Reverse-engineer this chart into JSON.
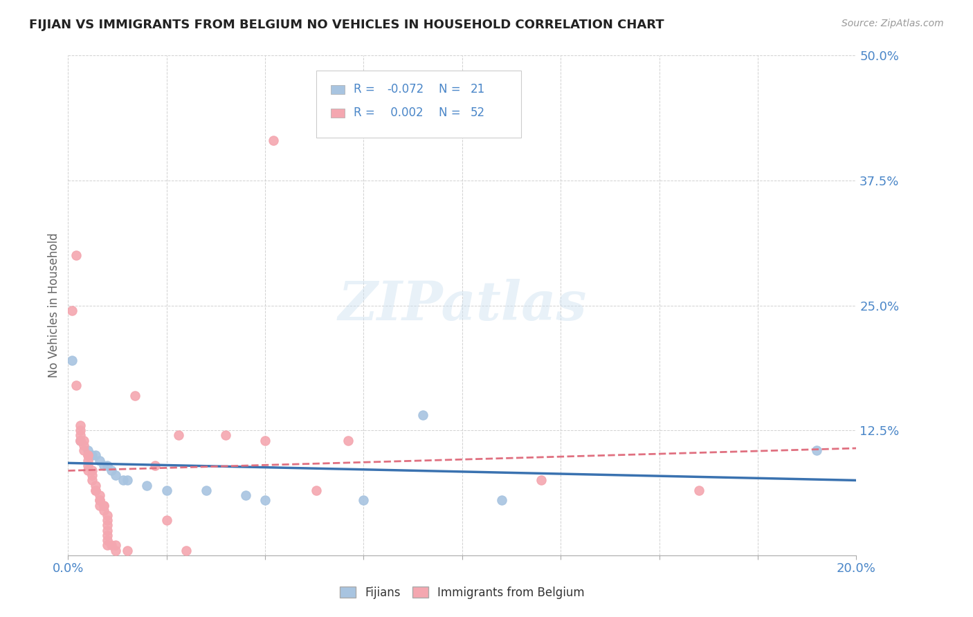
{
  "title": "FIJIAN VS IMMIGRANTS FROM BELGIUM NO VEHICLES IN HOUSEHOLD CORRELATION CHART",
  "source": "Source: ZipAtlas.com",
  "ylabel_label": "No Vehicles in Household",
  "xlim": [
    0.0,
    0.2
  ],
  "ylim": [
    0.0,
    0.5
  ],
  "xtick_positions": [
    0.0,
    0.025,
    0.05,
    0.075,
    0.1,
    0.125,
    0.15,
    0.175,
    0.2
  ],
  "xticklabels": [
    "0.0%",
    "",
    "",
    "",
    "",
    "",
    "",
    "",
    "20.0%"
  ],
  "ytick_positions": [
    0.0,
    0.125,
    0.25,
    0.375,
    0.5
  ],
  "yticklabels": [
    "",
    "12.5%",
    "25.0%",
    "37.5%",
    "50.0%"
  ],
  "fijians_R": "-0.072",
  "fijians_N": "21",
  "belgium_R": "0.002",
  "belgium_N": "52",
  "fijian_color": "#a8c4e0",
  "belgium_color": "#f4a7b0",
  "fijian_line_color": "#3a72b0",
  "belgium_line_color": "#e07080",
  "text_color": "#4a86c8",
  "watermark": "ZIPatlas",
  "fijian_points": [
    [
      0.001,
      0.195
    ],
    [
      0.003,
      0.115
    ],
    [
      0.005,
      0.105
    ],
    [
      0.006,
      0.1
    ],
    [
      0.007,
      0.1
    ],
    [
      0.008,
      0.095
    ],
    [
      0.009,
      0.09
    ],
    [
      0.01,
      0.09
    ],
    [
      0.011,
      0.085
    ],
    [
      0.012,
      0.08
    ],
    [
      0.014,
      0.075
    ],
    [
      0.015,
      0.075
    ],
    [
      0.02,
      0.07
    ],
    [
      0.025,
      0.065
    ],
    [
      0.035,
      0.065
    ],
    [
      0.045,
      0.06
    ],
    [
      0.05,
      0.055
    ],
    [
      0.075,
      0.055
    ],
    [
      0.09,
      0.14
    ],
    [
      0.11,
      0.055
    ],
    [
      0.19,
      0.105
    ]
  ],
  "belgium_points": [
    [
      0.001,
      0.245
    ],
    [
      0.002,
      0.3
    ],
    [
      0.002,
      0.17
    ],
    [
      0.003,
      0.13
    ],
    [
      0.003,
      0.125
    ],
    [
      0.003,
      0.12
    ],
    [
      0.003,
      0.115
    ],
    [
      0.003,
      0.115
    ],
    [
      0.004,
      0.115
    ],
    [
      0.004,
      0.11
    ],
    [
      0.004,
      0.105
    ],
    [
      0.005,
      0.1
    ],
    [
      0.005,
      0.1
    ],
    [
      0.005,
      0.095
    ],
    [
      0.005,
      0.09
    ],
    [
      0.005,
      0.085
    ],
    [
      0.006,
      0.085
    ],
    [
      0.006,
      0.08
    ],
    [
      0.006,
      0.075
    ],
    [
      0.007,
      0.07
    ],
    [
      0.007,
      0.065
    ],
    [
      0.007,
      0.065
    ],
    [
      0.008,
      0.06
    ],
    [
      0.008,
      0.055
    ],
    [
      0.008,
      0.055
    ],
    [
      0.008,
      0.05
    ],
    [
      0.009,
      0.05
    ],
    [
      0.009,
      0.05
    ],
    [
      0.009,
      0.045
    ],
    [
      0.01,
      0.04
    ],
    [
      0.01,
      0.035
    ],
    [
      0.01,
      0.03
    ],
    [
      0.01,
      0.025
    ],
    [
      0.01,
      0.02
    ],
    [
      0.01,
      0.015
    ],
    [
      0.01,
      0.01
    ],
    [
      0.011,
      0.01
    ],
    [
      0.012,
      0.01
    ],
    [
      0.012,
      0.005
    ],
    [
      0.015,
      0.005
    ],
    [
      0.017,
      0.16
    ],
    [
      0.022,
      0.09
    ],
    [
      0.025,
      0.035
    ],
    [
      0.028,
      0.12
    ],
    [
      0.03,
      0.005
    ],
    [
      0.04,
      0.12
    ],
    [
      0.05,
      0.115
    ],
    [
      0.052,
      0.415
    ],
    [
      0.063,
      0.065
    ],
    [
      0.071,
      0.115
    ],
    [
      0.12,
      0.075
    ],
    [
      0.16,
      0.065
    ]
  ]
}
